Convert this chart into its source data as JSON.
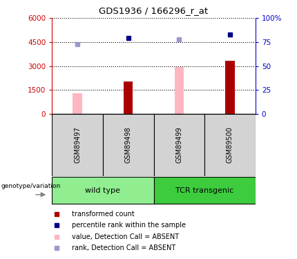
{
  "title": "GDS1936 / 166296_r_at",
  "samples": [
    "GSM89497",
    "GSM89498",
    "GSM89499",
    "GSM89500"
  ],
  "groups": [
    {
      "name": "wild type",
      "color": "#90ee90",
      "samples": [
        0,
        1
      ]
    },
    {
      "name": "TCR transgenic",
      "color": "#3dcc3d",
      "samples": [
        2,
        3
      ]
    }
  ],
  "bar_values": [
    null,
    2050,
    null,
    3350
  ],
  "bar_absent_values": [
    1280,
    null,
    2960,
    null
  ],
  "bar_colors_present": "#aa0000",
  "bar_colors_absent": "#ffb6c1",
  "rank_values_pct": [
    null,
    79,
    null,
    83
  ],
  "rank_absent_values_pct": [
    73,
    null,
    78,
    null
  ],
  "rank_colors_present": "#00008b",
  "rank_colors_absent": "#9999cc",
  "ylim_left": [
    0,
    6000
  ],
  "ylim_right": [
    0,
    100
  ],
  "yticks_left": [
    0,
    1500,
    3000,
    4500,
    6000
  ],
  "yticks_right": [
    0,
    25,
    50,
    75,
    100
  ],
  "ytick_labels_left": [
    "0",
    "1500",
    "3000",
    "4500",
    "6000"
  ],
  "ytick_labels_right": [
    "0",
    "25",
    "50",
    "75",
    "100%"
  ],
  "left_axis_color": "#cc0000",
  "right_axis_color": "#0000cc",
  "bar_width": 0.18,
  "grid_color": "black",
  "bg_sample_box": "#d3d3d3",
  "legend_items": [
    {
      "label": "transformed count",
      "color": "#aa0000",
      "marker": "s"
    },
    {
      "label": "percentile rank within the sample",
      "color": "#00008b",
      "marker": "s"
    },
    {
      "label": "value, Detection Call = ABSENT",
      "color": "#ffb6c1",
      "marker": "s"
    },
    {
      "label": "rank, Detection Call = ABSENT",
      "color": "#9999cc",
      "marker": "s"
    }
  ],
  "xlabel_genotype": "genotype/variation"
}
